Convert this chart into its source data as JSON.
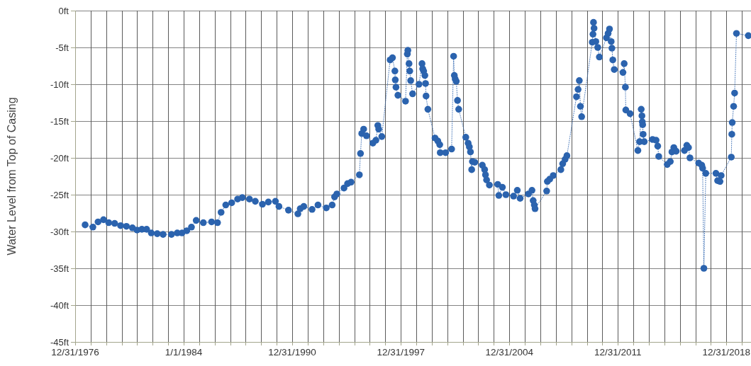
{
  "chart_data": {
    "type": "line",
    "ylabel": "Water Level from Top of Casing",
    "color": "#2b63ae",
    "marker": "circle",
    "line_style": "dotted",
    "grid": true,
    "xlim": [
      "1976-12-31",
      "2020-08-01"
    ],
    "ylim": [
      -45,
      0
    ],
    "yticks": [
      {
        "value": 0,
        "label": "0ft"
      },
      {
        "value": -5,
        "label": "-5ft"
      },
      {
        "value": -10,
        "label": "-10ft"
      },
      {
        "value": -15,
        "label": "-15ft"
      },
      {
        "value": -20,
        "label": "-20ft"
      },
      {
        "value": -25,
        "label": "-25ft"
      },
      {
        "value": -30,
        "label": "-30ft"
      },
      {
        "value": -35,
        "label": "-35ft"
      },
      {
        "value": -40,
        "label": "-40ft"
      },
      {
        "value": -45,
        "label": "-45ft"
      }
    ],
    "xticks": [
      {
        "value": "1976-12-31",
        "label": "12/31/1976"
      },
      {
        "value": "1977-12-31",
        "label": null
      },
      {
        "value": "1978-12-31",
        "label": null
      },
      {
        "value": "1979-12-31",
        "label": null
      },
      {
        "value": "1980-12-31",
        "label": null
      },
      {
        "value": "1981-12-31",
        "label": null
      },
      {
        "value": "1982-12-31",
        "label": null
      },
      {
        "value": "1984-01-01",
        "label": "1/1/1984"
      },
      {
        "value": "1984-12-31",
        "label": null
      },
      {
        "value": "1985-12-31",
        "label": null
      },
      {
        "value": "1986-12-31",
        "label": null
      },
      {
        "value": "1987-12-31",
        "label": null
      },
      {
        "value": "1988-12-31",
        "label": null
      },
      {
        "value": "1989-12-31",
        "label": null
      },
      {
        "value": "1990-12-31",
        "label": "12/31/1990"
      },
      {
        "value": "1991-12-31",
        "label": null
      },
      {
        "value": "1992-12-31",
        "label": null
      },
      {
        "value": "1993-12-31",
        "label": null
      },
      {
        "value": "1994-12-31",
        "label": null
      },
      {
        "value": "1995-12-31",
        "label": null
      },
      {
        "value": "1996-12-31",
        "label": null
      },
      {
        "value": "1997-12-31",
        "label": "12/31/1997"
      },
      {
        "value": "1998-12-31",
        "label": null
      },
      {
        "value": "1999-12-31",
        "label": null
      },
      {
        "value": "2000-12-31",
        "label": null
      },
      {
        "value": "2001-12-31",
        "label": null
      },
      {
        "value": "2002-12-31",
        "label": null
      },
      {
        "value": "2003-12-31",
        "label": null
      },
      {
        "value": "2004-12-31",
        "label": "12/31/2004"
      },
      {
        "value": "2005-12-31",
        "label": null
      },
      {
        "value": "2006-12-31",
        "label": null
      },
      {
        "value": "2007-12-31",
        "label": null
      },
      {
        "value": "2008-12-31",
        "label": null
      },
      {
        "value": "2009-12-31",
        "label": null
      },
      {
        "value": "2010-12-31",
        "label": null
      },
      {
        "value": "2011-12-31",
        "label": "12/31/2011"
      },
      {
        "value": "2012-12-31",
        "label": null
      },
      {
        "value": "2013-12-31",
        "label": null
      },
      {
        "value": "2014-12-31",
        "label": null
      },
      {
        "value": "2015-12-31",
        "label": null
      },
      {
        "value": "2016-12-31",
        "label": null
      },
      {
        "value": "2017-12-31",
        "label": null
      },
      {
        "value": "2018-12-31",
        "label": "12/31/2018"
      },
      {
        "value": "2019-12-31",
        "label": null
      }
    ],
    "x": [
      "1977-08-22",
      "1978-02-21",
      "1978-06-23",
      "1978-10-30",
      "1979-03-01",
      "1979-07-19",
      "1979-12-05",
      "1980-04-21",
      "1980-09-09",
      "1980-12-28",
      "1981-04-20",
      "1981-08-10",
      "1981-11-28",
      "1982-04-17",
      "1982-09-02",
      "1983-03-17",
      "1983-08-02",
      "1983-11-22",
      "1984-03-12",
      "1984-07-01",
      "1984-10-21",
      "1985-04-07",
      "1985-10-18",
      "1986-03-07",
      "1986-05-30",
      "1986-09-17",
      "1987-02-04",
      "1987-06-23",
      "1987-10-12",
      "1988-03-28",
      "1988-08-13",
      "1989-01-28",
      "1989-06-16",
      "1989-11-30",
      "1990-02-21",
      "1990-10-03",
      "1991-05-13",
      "1991-07-07",
      "1991-09-29",
      "1992-04-11",
      "1992-08-28",
      "1993-03-12",
      "1993-07-28",
      "1993-09-23",
      "1993-11-17",
      "1994-05-03",
      "1994-07-26",
      "1994-10-17",
      "1995-04-30",
      "1995-05-27",
      "1995-06-25",
      "1995-08-09",
      "1995-10-15",
      "1996-03-13",
      "1996-05-24",
      "1996-07-08",
      "1996-07-29",
      "1996-10-09",
      "1997-04-24",
      "1997-06-18",
      "1997-08-14",
      "1997-08-23",
      "1997-09-09",
      "1997-10-24",
      "1998-04-21",
      "1998-06-03",
      "1998-06-15",
      "1998-07-13",
      "1998-07-30",
      "1998-08-21",
      "1998-10-05",
      "1999-03-04",
      "1999-05-15",
      "1999-05-31",
      "1999-06-22",
      "1999-07-21",
      "1999-08-06",
      "1999-08-18",
      "1999-09-30",
      "2000-03-16",
      "2000-05-21",
      "2000-07-05",
      "2000-07-17",
      "2000-11-21",
      "2001-04-11",
      "2001-05-28",
      "2001-06-14",
      "2001-07-04",
      "2001-07-30",
      "2001-08-28",
      "2001-09-25",
      "2002-03-11",
      "2002-05-05",
      "2002-06-03",
      "2002-06-29",
      "2002-07-28",
      "2002-08-14",
      "2002-10-08",
      "2003-04-04",
      "2003-05-29",
      "2003-06-18",
      "2003-07-14",
      "2003-09-18",
      "2004-04-01",
      "2004-04-27",
      "2004-07-20",
      "2004-10-11",
      "2005-04-09",
      "2005-07-06",
      "2005-09-11",
      "2006-03-25",
      "2006-06-17",
      "2006-07-15",
      "2006-08-11",
      "2006-08-28",
      "2007-05-29",
      "2007-06-14",
      "2007-08-08",
      "2007-10-31",
      "2008-04-27",
      "2008-06-09",
      "2008-08-05",
      "2008-09-17",
      "2009-04-30",
      "2009-06-07",
      "2009-07-06",
      "2009-08-01",
      "2009-08-30",
      "2010-05-07",
      "2010-05-24",
      "2010-06-05",
      "2010-06-18",
      "2010-07-30",
      "2010-09-13",
      "2010-10-21",
      "2011-04-06",
      "2011-05-15",
      "2011-06-17",
      "2011-07-27",
      "2011-08-13",
      "2011-09-03",
      "2011-10-07",
      "2012-04-29",
      "2012-05-28",
      "2012-06-25",
      "2012-07-05",
      "2012-10-14",
      "2013-04-16",
      "2013-05-26",
      "2013-07-03",
      "2013-07-20",
      "2013-07-28",
      "2013-08-06",
      "2013-08-17",
      "2013-09-13",
      "2014-03-27",
      "2014-06-19",
      "2014-07-27",
      "2014-08-20",
      "2015-03-08",
      "2015-05-19",
      "2015-06-26",
      "2015-08-10",
      "2015-10-04",
      "2016-04-17",
      "2016-06-11",
      "2016-07-21",
      "2016-08-24",
      "2017-03-18",
      "2017-05-29",
      "2017-06-18",
      "2017-07-18",
      "2017-09-01",
      "2018-04-28",
      "2018-06-07",
      "2018-08-01",
      "2018-08-29",
      "2019-04-25",
      "2019-05-07",
      "2019-05-17",
      "2019-06-19",
      "2019-07-12",
      "2019-08-25",
      "2020-05-30"
    ],
    "values": [
      -29.1,
      -29.4,
      -28.7,
      -28.4,
      -28.8,
      -28.9,
      -29.2,
      -29.3,
      -29.5,
      -29.8,
      -29.7,
      -29.7,
      -30.2,
      -30.3,
      -30.4,
      -30.4,
      -30.2,
      -30.2,
      -29.9,
      -29.4,
      -28.5,
      -28.8,
      -28.7,
      -28.8,
      -27.4,
      -26.4,
      -26.1,
      -25.6,
      -25.4,
      -25.6,
      -25.9,
      -26.3,
      -26.0,
      -25.9,
      -26.6,
      -27.1,
      -27.6,
      -26.9,
      -26.6,
      -27.0,
      -26.4,
      -26.8,
      -26.4,
      -25.3,
      -24.9,
      -24.1,
      -23.5,
      -23.3,
      -22.3,
      -19.4,
      -16.7,
      -16.1,
      -17.0,
      -18.0,
      -17.6,
      -15.6,
      -16.1,
      -17.1,
      -6.7,
      -6.4,
      -8.2,
      -9.4,
      -10.4,
      -11.5,
      -12.3,
      -5.9,
      -5.4,
      -7.2,
      -8.2,
      -9.5,
      -11.3,
      -10.0,
      -7.2,
      -7.9,
      -8.2,
      -8.8,
      -9.9,
      -11.6,
      -13.4,
      -17.3,
      -17.7,
      -18.2,
      -19.3,
      -19.3,
      -18.8,
      -6.2,
      -8.8,
      -9.3,
      -9.6,
      -12.2,
      -13.4,
      -17.2,
      -18.0,
      -18.5,
      -19.2,
      -21.6,
      -20.5,
      -20.6,
      -21.0,
      -21.6,
      -22.3,
      -23.0,
      -23.7,
      -23.6,
      -25.1,
      -24.0,
      -25.0,
      -25.2,
      -24.4,
      -25.5,
      -24.9,
      -24.4,
      -25.8,
      -26.4,
      -26.9,
      -24.5,
      -23.2,
      -22.9,
      -22.4,
      -21.6,
      -20.8,
      -20.2,
      -19.7,
      -11.7,
      -10.7,
      -9.5,
      -13.0,
      -14.4,
      -4.3,
      -3.2,
      -1.6,
      -2.4,
      -4.2,
      -5.0,
      -6.3,
      -3.7,
      -3.1,
      -2.5,
      -4.2,
      -5.1,
      -6.7,
      -8.0,
      -8.4,
      -7.2,
      -10.4,
      -13.5,
      -14.0,
      -19.0,
      -17.8,
      -13.4,
      -14.3,
      -15.1,
      -15.5,
      -16.8,
      -17.8,
      -17.5,
      -17.6,
      -18.4,
      -19.8,
      -20.9,
      -20.5,
      -19.2,
      -18.6,
      -19.1,
      -19.0,
      -18.3,
      -18.6,
      -20.0,
      -20.7,
      -21.0,
      -21.4,
      -35.0,
      -22.1,
      -22.1,
      -23.1,
      -23.2,
      -22.4,
      -19.9,
      -16.8,
      -15.2,
      -13.0,
      -11.2,
      -3.1,
      -3.4
    ]
  }
}
